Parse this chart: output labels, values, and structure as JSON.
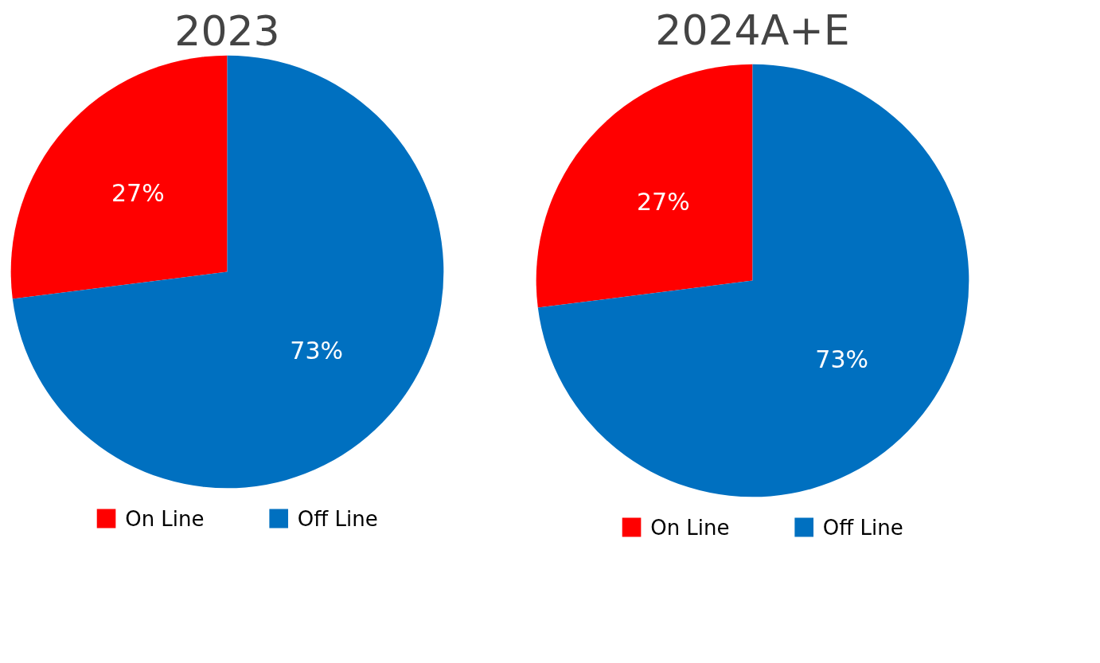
{
  "chart_data": [
    {
      "type": "pie",
      "title": "2023",
      "categories": [
        "On Line",
        "Off Line"
      ],
      "values": [
        27,
        73
      ],
      "colors": [
        "#ff0000",
        "#0070c0"
      ],
      "value_labels": [
        "27%",
        "73%"
      ],
      "legend": "bottom"
    },
    {
      "type": "pie",
      "title": "2024A+E",
      "categories": [
        "On Line",
        "Off Line"
      ],
      "values": [
        27,
        73
      ],
      "colors": [
        "#ff0000",
        "#0070c0"
      ],
      "value_labels": [
        "27%",
        "73%"
      ],
      "legend": "bottom"
    }
  ]
}
